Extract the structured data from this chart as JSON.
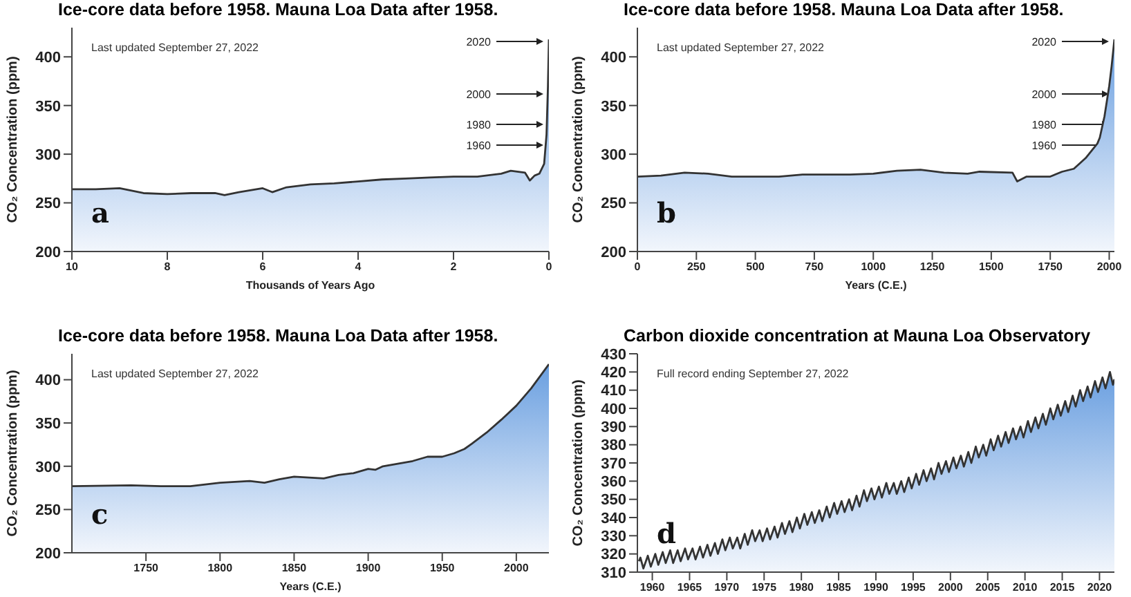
{
  "chart_data": [
    {
      "type": "area",
      "title": "Ice-core data before 1958. Mauna Loa Data after 1958.",
      "xlabel": "Thousands of Years Ago",
      "ylabel": "CO₂ Concentration (ppm)",
      "color": "#6a9fe0",
      "x": [
        10,
        9.5,
        9,
        8.5,
        8,
        7.5,
        7,
        6.8,
        6.5,
        6,
        5.8,
        5.5,
        5,
        4.5,
        4,
        3.5,
        3,
        2.5,
        2,
        1.5,
        1,
        0.8,
        0.5,
        0.4,
        0.3,
        0.2,
        0.1,
        0.05,
        0.02,
        0
      ],
      "values": [
        264,
        264,
        265,
        260,
        259,
        260,
        260,
        258,
        261,
        265,
        261,
        266,
        269,
        270,
        272,
        274,
        275,
        276,
        277,
        277,
        280,
        283,
        281,
        273,
        278,
        280,
        290,
        320,
        370,
        418
      ],
      "xlim": [
        10,
        0
      ],
      "xticks": [
        10,
        8,
        6,
        4,
        2,
        0
      ],
      "ylim": [
        200,
        430
      ],
      "yticks": [
        200,
        250,
        300,
        350,
        400
      ],
      "annotations": [
        "Last updated September 27, 2022",
        "a",
        "2020",
        "2000",
        "1980",
        "1960"
      ]
    },
    {
      "type": "area",
      "title": "Ice-core data before 1958. Mauna Loa Data after 1958.",
      "xlabel": "Years (C.E.)",
      "ylabel": "CO₂ Concentration (ppm)",
      "color": "#6a9fe0",
      "x": [
        0,
        100,
        200,
        300,
        400,
        600,
        700,
        900,
        1000,
        1100,
        1200,
        1300,
        1400,
        1450,
        1590,
        1610,
        1650,
        1750,
        1800,
        1850,
        1900,
        1950,
        1960,
        1980,
        2000,
        2010,
        2022
      ],
      "values": [
        277,
        278,
        281,
        280,
        277,
        277,
        279,
        279,
        280,
        283,
        284,
        281,
        280,
        282,
        281,
        272,
        277,
        277,
        282,
        285,
        296,
        311,
        317,
        339,
        370,
        390,
        418
      ],
      "xlim": [
        0,
        2022
      ],
      "xticks": [
        0,
        250,
        500,
        750,
        1000,
        1250,
        1500,
        1750,
        2000
      ],
      "ylim": [
        200,
        430
      ],
      "yticks": [
        200,
        250,
        300,
        350,
        400
      ],
      "annotations": [
        "Last updated September 27, 2022",
        "b",
        "2020",
        "2000",
        "1980",
        "1960"
      ]
    },
    {
      "type": "area",
      "title": "Ice-core data before 1958. Mauna Loa Data after 1958.",
      "xlabel": "Years (C.E.)",
      "ylabel": "CO₂ Concentration (ppm)",
      "color": "#6a9fe0",
      "x": [
        1700,
        1740,
        1760,
        1780,
        1800,
        1820,
        1830,
        1840,
        1850,
        1870,
        1880,
        1890,
        1900,
        1905,
        1910,
        1920,
        1930,
        1940,
        1950,
        1958,
        1965,
        1970,
        1980,
        1990,
        2000,
        2010,
        2022
      ],
      "values": [
        277,
        278,
        277,
        277,
        281,
        283,
        281,
        285,
        288,
        286,
        290,
        292,
        297,
        296,
        300,
        303,
        306,
        311,
        311,
        315,
        320,
        326,
        339,
        354,
        370,
        390,
        418
      ],
      "xlim": [
        1700,
        2022
      ],
      "xticks": [
        1750,
        1800,
        1850,
        1900,
        1950,
        2000
      ],
      "ylim": [
        200,
        430
      ],
      "yticks": [
        200,
        250,
        300,
        350,
        400
      ],
      "annotations": [
        "Last updated September 27, 2022",
        "c"
      ]
    },
    {
      "type": "area",
      "title": "Carbon dioxide concentration at Mauna Loa Observatory",
      "ylabel": "CO₂ Concentration (ppm)",
      "color": "#6a9fe0",
      "x": [
        1958.2,
        1958.4,
        1958.8,
        1959.4,
        1959.8,
        1960.4,
        1960.8,
        1961.4,
        1961.8,
        1962.4,
        1962.8,
        1963.4,
        1963.8,
        1964.4,
        1964.8,
        1965.4,
        1965.8,
        1966.4,
        1966.8,
        1967.4,
        1967.8,
        1968.4,
        1968.8,
        1969.4,
        1969.8,
        1970.4,
        1970.8,
        1971.4,
        1971.8,
        1972.4,
        1972.8,
        1973.4,
        1973.8,
        1974.4,
        1974.8,
        1975.4,
        1975.8,
        1976.4,
        1976.8,
        1977.4,
        1977.8,
        1978.4,
        1978.8,
        1979.4,
        1979.8,
        1980.4,
        1980.8,
        1981.4,
        1981.8,
        1982.4,
        1982.8,
        1983.4,
        1983.8,
        1984.4,
        1984.8,
        1985.4,
        1985.8,
        1986.4,
        1986.8,
        1987.4,
        1987.8,
        1988.4,
        1988.8,
        1989.4,
        1989.8,
        1990.4,
        1990.8,
        1991.4,
        1991.8,
        1992.4,
        1992.8,
        1993.4,
        1993.8,
        1994.4,
        1994.8,
        1995.4,
        1995.8,
        1996.4,
        1996.8,
        1997.4,
        1997.8,
        1998.4,
        1998.8,
        1999.4,
        1999.8,
        2000.4,
        2000.8,
        2001.4,
        2001.8,
        2002.4,
        2002.8,
        2003.4,
        2003.8,
        2004.4,
        2004.8,
        2005.4,
        2005.8,
        2006.4,
        2006.8,
        2007.4,
        2007.8,
        2008.4,
        2008.8,
        2009.4,
        2009.8,
        2010.4,
        2010.8,
        2011.4,
        2011.8,
        2012.4,
        2012.8,
        2013.4,
        2013.8,
        2014.4,
        2014.8,
        2015.4,
        2015.8,
        2016.4,
        2016.8,
        2017.4,
        2017.8,
        2018.4,
        2018.8,
        2019.4,
        2019.8,
        2020.4,
        2020.8,
        2021.4,
        2021.8,
        2022
      ],
      "values": [
        316,
        318,
        312,
        319,
        313,
        320,
        314,
        321,
        315,
        322,
        315,
        322,
        316,
        323,
        317,
        323,
        317,
        324,
        318,
        325,
        319,
        326,
        320,
        328,
        322,
        329,
        323,
        329,
        323,
        331,
        325,
        333,
        327,
        333,
        327,
        334,
        328,
        335,
        329,
        337,
        331,
        338,
        332,
        340,
        334,
        342,
        336,
        343,
        337,
        344,
        338,
        346,
        340,
        348,
        342,
        349,
        343,
        350,
        344,
        352,
        346,
        355,
        349,
        356,
        350,
        357,
        351,
        359,
        353,
        359,
        353,
        360,
        354,
        362,
        356,
        364,
        358,
        366,
        360,
        367,
        361,
        370,
        364,
        371,
        365,
        373,
        367,
        374,
        368,
        376,
        370,
        379,
        373,
        380,
        374,
        383,
        377,
        385,
        379,
        387,
        381,
        389,
        383,
        390,
        384,
        393,
        387,
        395,
        389,
        397,
        391,
        400,
        394,
        402,
        396,
        404,
        398,
        407,
        401,
        410,
        404,
        412,
        406,
        415,
        409,
        417,
        411,
        420,
        413,
        416
      ],
      "xlim": [
        1958,
        2022
      ],
      "xticks": [
        1960,
        1965,
        1970,
        1975,
        1980,
        1985,
        1990,
        1995,
        2000,
        2005,
        2010,
        2015,
        2020
      ],
      "ylim": [
        310,
        430
      ],
      "yticks": [
        310,
        320,
        330,
        340,
        350,
        360,
        370,
        380,
        390,
        400,
        410,
        420,
        430
      ],
      "annotations": [
        "Full record ending September 27, 2022",
        "d"
      ]
    }
  ]
}
